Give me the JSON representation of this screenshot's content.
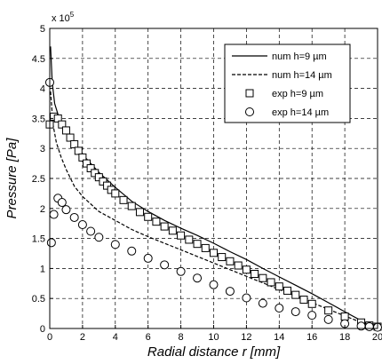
{
  "chart_data": {
    "type": "scatter",
    "title": "",
    "xlabel": "Radial distance r [mm]",
    "ylabel": "Pressure [Pa]",
    "y_multiplier": "x 10^5",
    "xlim": [
      0,
      20
    ],
    "ylim": [
      0,
      500000
    ],
    "x_ticks": [
      0,
      2,
      4,
      6,
      8,
      10,
      12,
      14,
      16,
      18,
      20
    ],
    "y_ticks": [
      0,
      50000,
      100000,
      150000,
      200000,
      250000,
      300000,
      350000,
      400000,
      450000,
      500000
    ],
    "y_tick_labels": [
      "0",
      "0.5",
      "1",
      "1.5",
      "2",
      "2.5",
      "3",
      "3.5",
      "4",
      "4.5",
      "5"
    ],
    "grid": true,
    "legend_position": "top-right",
    "series": [
      {
        "name": "num h=9 µm",
        "kind": "line",
        "style": "solid",
        "x": [
          0.05,
          0.15,
          0.3,
          0.6,
          1,
          1.5,
          2,
          3,
          4,
          5,
          6,
          7,
          8,
          9,
          10,
          11,
          12,
          13,
          14,
          15,
          16,
          17,
          18,
          19,
          19.5,
          20
        ],
        "y": [
          470000,
          410000,
          375000,
          348000,
          330000,
          310000,
          290000,
          260000,
          235000,
          212000,
          195000,
          180000,
          167000,
          155000,
          142000,
          128000,
          115000,
          100000,
          86000,
          72000,
          58000,
          43000,
          28000,
          13000,
          7000,
          3000
        ]
      },
      {
        "name": "num h=14 µm",
        "kind": "line",
        "style": "dashed",
        "x": [
          0.05,
          0.2,
          0.4,
          0.7,
          1,
          1.5,
          2,
          3,
          4,
          5,
          6,
          7,
          8,
          9,
          10,
          11,
          12,
          13,
          14,
          15,
          16,
          17,
          18,
          19,
          19.5,
          20
        ],
        "y": [
          395000,
          340000,
          310000,
          285000,
          265000,
          237000,
          220000,
          195000,
          180000,
          165000,
          153000,
          142000,
          131000,
          120000,
          109000,
          98000,
          87000,
          76000,
          65000,
          54000,
          43000,
          32000,
          21000,
          10000,
          6000,
          3000
        ]
      },
      {
        "name": "exp h=9 µm",
        "kind": "marker",
        "marker": "square",
        "x": [
          0,
          0.25,
          0.5,
          0.75,
          1,
          1.25,
          1.5,
          1.75,
          2,
          2.25,
          2.5,
          2.75,
          3,
          3.25,
          3.5,
          3.75,
          4,
          4.5,
          5,
          5.5,
          6,
          6.5,
          7,
          7.5,
          8,
          8.5,
          9,
          9.5,
          10,
          10.5,
          11,
          11.5,
          12,
          12.5,
          13,
          13.5,
          14,
          14.5,
          15,
          15.5,
          16,
          17,
          18,
          19,
          19.5,
          20
        ],
        "y": [
          340000,
          353000,
          350000,
          340000,
          330000,
          318000,
          307000,
          296000,
          285000,
          275000,
          267000,
          259000,
          252000,
          245000,
          238000,
          231000,
          225000,
          214000,
          204000,
          194000,
          186000,
          178000,
          170000,
          163000,
          155000,
          148000,
          141000,
          134000,
          126000,
          119000,
          112000,
          105000,
          98000,
          91000,
          84000,
          77000,
          70000,
          63000,
          56000,
          48000,
          41000,
          30000,
          20000,
          10000,
          5000,
          3000
        ]
      },
      {
        "name": "exp h=14 µm",
        "kind": "marker",
        "marker": "circle",
        "x": [
          0,
          0.1,
          0.25,
          0.5,
          0.75,
          1,
          1.5,
          2,
          2.5,
          3,
          4,
          5,
          6,
          7,
          8,
          9,
          10,
          11,
          12,
          13,
          14,
          15,
          16,
          17,
          18,
          19,
          19.5,
          20
        ],
        "y": [
          410000,
          143000,
          190000,
          217000,
          210000,
          198000,
          185000,
          173000,
          162000,
          152000,
          140000,
          129000,
          117000,
          106000,
          95000,
          84000,
          73000,
          62000,
          51000,
          42000,
          34000,
          28000,
          22000,
          15000,
          8000,
          4000,
          3000,
          2000
        ]
      }
    ]
  }
}
